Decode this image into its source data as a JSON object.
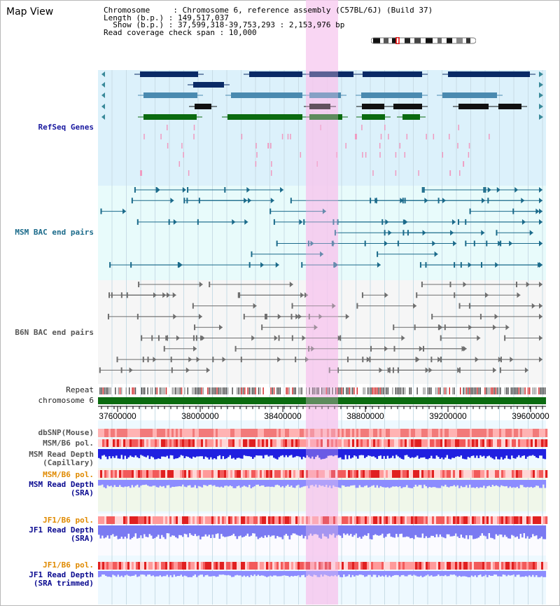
{
  "title": "Map View",
  "info": {
    "chromosome_label": "Chromosome",
    "chromosome_value": "Chromosome 6, reference assembly (C57BL/6J) (Build 37)",
    "length_label": "Length (b.p.)",
    "length_value": "149,517,037",
    "show_label": "Show (b.p.)",
    "show_value": "37,599,318-39,753,293 : 2,153,976 bp",
    "span_label": "Read coverage check span",
    "span_value": "10,000"
  },
  "tracks": {
    "refseq": "RefSeq Genes",
    "msm_bac": "MSM BAC end pairs",
    "b6n_bac": "B6N BAC end pairs",
    "repeat": "Repeat",
    "chromosome": "chromosome 6",
    "dbsnp": "dbSNP(Mouse)",
    "msm_pol1": "MSM/B6 pol.",
    "msm_depth_cap": "MSM Read Depth\n(Capillary)",
    "msm_pol2": "MSM/B6 pol.",
    "msm_depth_sra": "MSM Read Depth\n(SRA)",
    "jf1_pol1": "JF1/B6 pol.",
    "jf1_depth_sra": "JF1 Read Depth\n(SRA)",
    "jf1_pol2": "JF1/B6 pol.",
    "jf1_depth_trim": "JF1 Read Depth\n(SRA trimmed)"
  },
  "axis": {
    "ticks": [
      "37600000",
      "38000000",
      "38400000",
      "38800000",
      "39200000",
      "39600000"
    ]
  },
  "colors": {
    "refseq_label": "#1a1aa0",
    "msm_label": "#1a6a8a",
    "b6n_label": "#555555",
    "pol_orange": "#e08a00",
    "depth_blue": "#0a0a90",
    "highlight": "#f7c8ef",
    "gene_dark": "#0a2a66",
    "gene_mid": "#4a8ab0",
    "gene_green": "#0b6b10",
    "chrom_green": "#0b6b10"
  }
}
